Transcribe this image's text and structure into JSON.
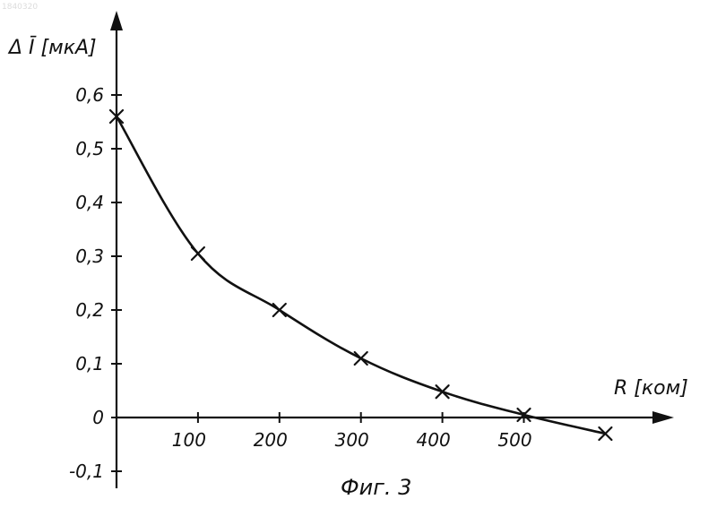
{
  "document_id": "1840320",
  "caption": "Фиг. 3",
  "chart_data": {
    "type": "line",
    "title": "",
    "xlabel": "R [ком]",
    "ylabel": "Δ Ī [мкА]",
    "xlim": [
      0,
      650
    ],
    "ylim": [
      -0.1,
      0.6
    ],
    "x_ticks": [
      100,
      200,
      300,
      400,
      500
    ],
    "x_tick_labels": [
      "100",
      "200",
      "300",
      "400",
      "500"
    ],
    "y_ticks": [
      0.6,
      0.5,
      0.4,
      0.3,
      0.2,
      0.1,
      0,
      -0.1
    ],
    "y_tick_labels": [
      "0,6",
      "0,5",
      "0,4",
      "0,3",
      "0,2",
      "0,1",
      "0",
      "-0,1"
    ],
    "grid": false,
    "legend": "none",
    "series": [
      {
        "marker": "x",
        "x": [
          0,
          100,
          200,
          300,
          400,
          500,
          600
        ],
        "y": [
          0.56,
          0.305,
          0.2,
          0.11,
          0.048,
          0.005,
          -0.03
        ]
      }
    ]
  }
}
